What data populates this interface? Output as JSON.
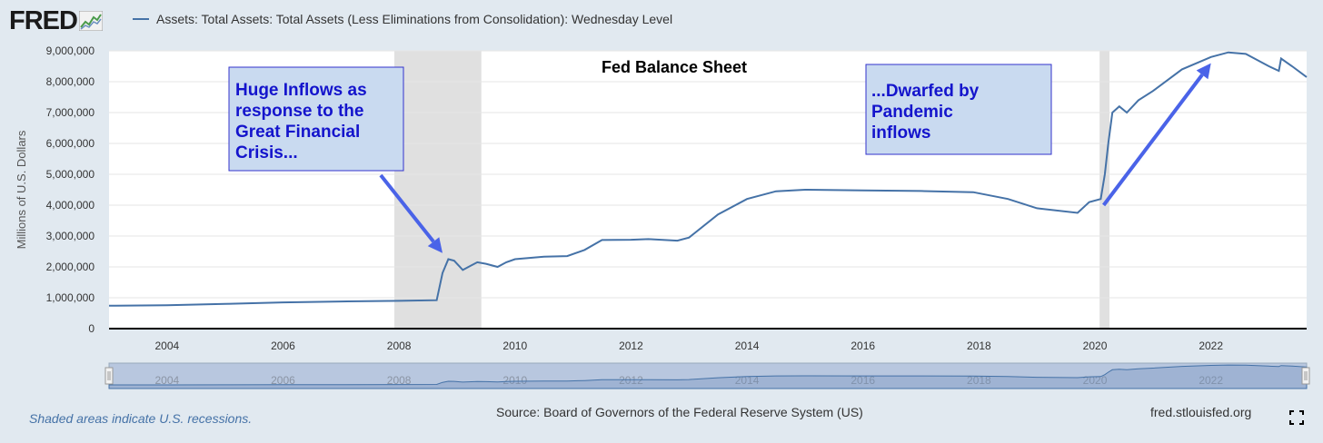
{
  "header": {
    "logo_text": "FRED",
    "series_legend": "Assets: Total Assets: Total Assets (Less Eliminations from Consolidation): Wednesday Level"
  },
  "chart_data": {
    "type": "line",
    "title": "Fed Balance Sheet",
    "xlabel": "",
    "ylabel": "Millions of U.S. Dollars",
    "xlim": [
      2003.0,
      2023.65
    ],
    "ylim": [
      0,
      9000000
    ],
    "x_ticks": [
      2004,
      2006,
      2008,
      2010,
      2012,
      2014,
      2016,
      2018,
      2020,
      2022
    ],
    "y_ticks": [
      0,
      1000000,
      2000000,
      3000000,
      4000000,
      5000000,
      6000000,
      7000000,
      8000000,
      9000000
    ],
    "y_tick_labels": [
      "0",
      "1,000,000",
      "2,000,000",
      "3,000,000",
      "4,000,000",
      "5,000,000",
      "6,000,000",
      "7,000,000",
      "8,000,000",
      "9,000,000"
    ],
    "recessions": [
      [
        2007.92,
        2009.42
      ],
      [
        2020.08,
        2020.25
      ]
    ],
    "series": [
      {
        "name": "Assets: Total Assets: Total Assets (Less Eliminations from Consolidation): Wednesday Level",
        "color": "#4572a7",
        "x": [
          2003.0,
          2004.0,
          2005.0,
          2006.0,
          2007.0,
          2008.0,
          2008.65,
          2008.75,
          2008.85,
          2008.95,
          2009.1,
          2009.25,
          2009.35,
          2009.5,
          2009.7,
          2009.85,
          2010.0,
          2010.5,
          2010.9,
          2011.2,
          2011.5,
          2012.0,
          2012.3,
          2012.8,
          2013.0,
          2013.5,
          2014.0,
          2014.5,
          2015.0,
          2016.0,
          2017.0,
          2017.9,
          2018.5,
          2019.0,
          2019.7,
          2019.9,
          2020.1,
          2020.17,
          2020.23,
          2020.3,
          2020.42,
          2020.55,
          2020.75,
          2021.0,
          2021.5,
          2022.0,
          2022.3,
          2022.6,
          2023.0,
          2023.17,
          2023.21,
          2023.4,
          2023.65
        ],
        "values": [
          740000,
          760000,
          800000,
          850000,
          880000,
          900000,
          920000,
          1800000,
          2250000,
          2200000,
          1900000,
          2050000,
          2150000,
          2100000,
          2000000,
          2150000,
          2250000,
          2330000,
          2350000,
          2550000,
          2870000,
          2880000,
          2900000,
          2850000,
          2950000,
          3700000,
          4200000,
          4450000,
          4500000,
          4480000,
          4460000,
          4420000,
          4200000,
          3900000,
          3750000,
          4100000,
          4200000,
          5000000,
          6000000,
          7000000,
          7200000,
          7000000,
          7400000,
          7700000,
          8400000,
          8800000,
          8950000,
          8900000,
          8500000,
          8350000,
          8750000,
          8500000,
          8150000
        ]
      }
    ],
    "annotations": [
      {
        "name": "gfc-annotation",
        "lines": [
          "Huge Inflows as",
          "response to the",
          "Great Financial",
          "Crisis..."
        ],
        "arrow_to_year": 2008.75,
        "arrow_to_value": 2450000
      },
      {
        "name": "pandemic-annotation",
        "lines": [
          "...Dwarfed by",
          "Pandemic",
          "inflows"
        ],
        "arrow_from_year": 2020.15,
        "arrow_from_value": 4000000,
        "arrow_to_year": 2022.0,
        "arrow_to_value": 8600000
      }
    ],
    "navigator_ticks": [
      2004,
      2006,
      2008,
      2010,
      2012,
      2014,
      2016,
      2018,
      2020,
      2022
    ]
  },
  "footer": {
    "recession_note": "Shaded areas indicate U.S. recessions.",
    "source": "Source: Board of Governors of the Federal Reserve System (US)",
    "site": "fred.stlouisfed.org"
  },
  "icons": {
    "logo_graph": "line-graph-icon",
    "fullscreen": "fullscreen-icon"
  }
}
